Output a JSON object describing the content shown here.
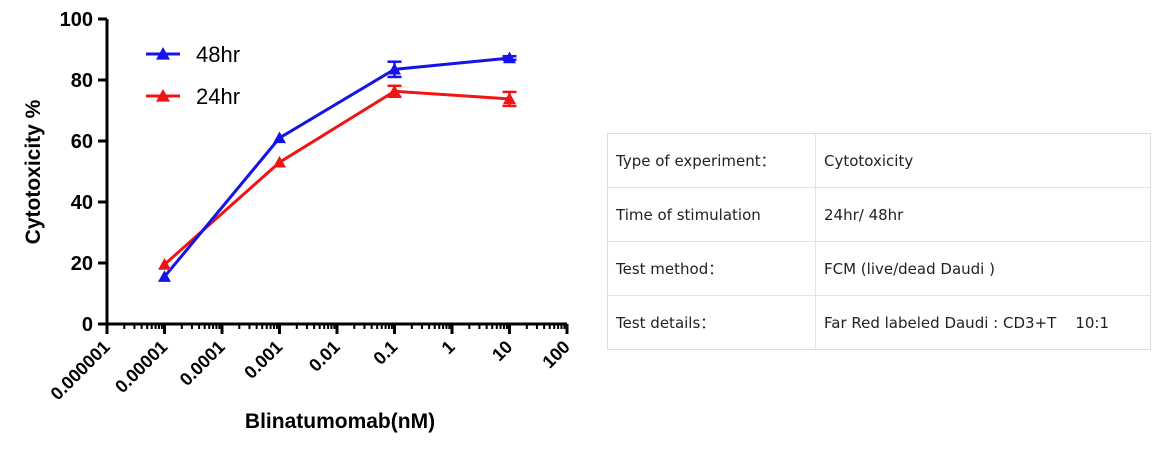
{
  "chart_data": {
    "type": "line",
    "xlabel": "Blinatumomab(nM)",
    "ylabel": "Cytotoxicity %",
    "xscale": "log",
    "xlim": [
      1e-06,
      100
    ],
    "ylim": [
      0,
      100
    ],
    "x_ticks": [
      1e-06,
      1e-05,
      0.0001,
      0.001,
      0.01,
      0.1,
      1,
      10,
      100
    ],
    "x_tick_labels": [
      "0.000001",
      "0.00001",
      "0.0001",
      "0.001",
      "0.01",
      "0.1",
      "1",
      "10",
      "100"
    ],
    "y_ticks": [
      0,
      20,
      40,
      60,
      80,
      100
    ],
    "y_tick_labels": [
      "0",
      "20",
      "40",
      "60",
      "80",
      "100"
    ],
    "legend_position": "top-left",
    "grid": false,
    "series": [
      {
        "name": "48hr",
        "color": "#1414e6",
        "marker": "triangle",
        "x": [
          1e-05,
          0.001,
          0.1,
          10
        ],
        "y": [
          15.5,
          61,
          83.5,
          87.2
        ],
        "error": [
          0,
          0,
          2.5,
          0.6
        ]
      },
      {
        "name": "24hr",
        "color": "#f01414",
        "marker": "triangle",
        "x": [
          1e-05,
          0.001,
          0.1,
          10
        ],
        "y": [
          19.5,
          53,
          76.3,
          73.8
        ],
        "error": [
          0,
          0,
          1.8,
          2.3
        ]
      }
    ]
  },
  "info_table": {
    "rows": [
      {
        "key": "Type of experiment：",
        "value": "Cytotoxicity"
      },
      {
        "key": "Time of stimulation",
        "value": "24hr/ 48hr"
      },
      {
        "key": "Test method：",
        "value": "FCM (live/dead Daudi )"
      },
      {
        "key": "Test details：",
        "value": "Far Red labeled Daudi : CD3+T    10:1"
      }
    ]
  }
}
